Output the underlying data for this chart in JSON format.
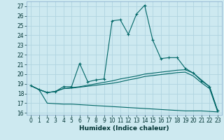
{
  "xlabel": "Humidex (Indice chaleur)",
  "bg_color": "#cde9f0",
  "grid_color": "#b0d4e0",
  "line_color": "#006666",
  "xlim": [
    -0.5,
    23.5
  ],
  "ylim": [
    15.8,
    27.5
  ],
  "yticks": [
    16,
    17,
    18,
    19,
    20,
    21,
    22,
    23,
    24,
    25,
    26,
    27
  ],
  "xticks": [
    0,
    1,
    2,
    3,
    4,
    5,
    6,
    7,
    8,
    9,
    10,
    11,
    12,
    13,
    14,
    15,
    16,
    17,
    18,
    19,
    20,
    21,
    22,
    23
  ],
  "line1_x": [
    0,
    1,
    2,
    3,
    4,
    5,
    6,
    7,
    8,
    9,
    10,
    11,
    12,
    13,
    14,
    15,
    16,
    17,
    18,
    19,
    20,
    21,
    22,
    23
  ],
  "line1_y": [
    18.8,
    18.4,
    18.1,
    18.2,
    18.7,
    18.7,
    21.1,
    19.2,
    19.4,
    19.5,
    25.5,
    25.6,
    24.1,
    26.2,
    27.1,
    23.5,
    21.6,
    21.7,
    21.7,
    20.6,
    20.1,
    19.3,
    18.7,
    16.2
  ],
  "line2_x": [
    0,
    1,
    2,
    3,
    4,
    5,
    6,
    7,
    8,
    9,
    10,
    11,
    12,
    13,
    14,
    15,
    16,
    17,
    18,
    19,
    20,
    21,
    22,
    23
  ],
  "line2_y": [
    18.8,
    18.4,
    18.1,
    18.2,
    18.5,
    18.6,
    18.7,
    18.85,
    19.0,
    19.15,
    19.3,
    19.5,
    19.65,
    19.8,
    20.0,
    20.1,
    20.2,
    20.3,
    20.4,
    20.45,
    20.1,
    19.4,
    18.7,
    16.2
  ],
  "line3_x": [
    0,
    1,
    2,
    3,
    4,
    5,
    6,
    7,
    8,
    9,
    10,
    11,
    12,
    13,
    14,
    15,
    16,
    17,
    18,
    19,
    20,
    21,
    22,
    23
  ],
  "line3_y": [
    18.8,
    18.4,
    18.1,
    18.2,
    18.5,
    18.55,
    18.65,
    18.75,
    18.85,
    18.95,
    19.05,
    19.2,
    19.4,
    19.55,
    19.75,
    19.85,
    19.95,
    20.05,
    20.15,
    20.2,
    19.8,
    19.1,
    18.5,
    16.1
  ],
  "line4_x": [
    0,
    1,
    2,
    3,
    4,
    5,
    6,
    7,
    8,
    9,
    10,
    11,
    12,
    13,
    14,
    15,
    16,
    17,
    18,
    19,
    20,
    21,
    22,
    23
  ],
  "line4_y": [
    18.8,
    18.4,
    17.0,
    16.95,
    16.9,
    16.9,
    16.85,
    16.8,
    16.75,
    16.7,
    16.65,
    16.6,
    16.55,
    16.5,
    16.45,
    16.4,
    16.35,
    16.3,
    16.25,
    16.2,
    16.2,
    16.2,
    16.15,
    16.1
  ]
}
